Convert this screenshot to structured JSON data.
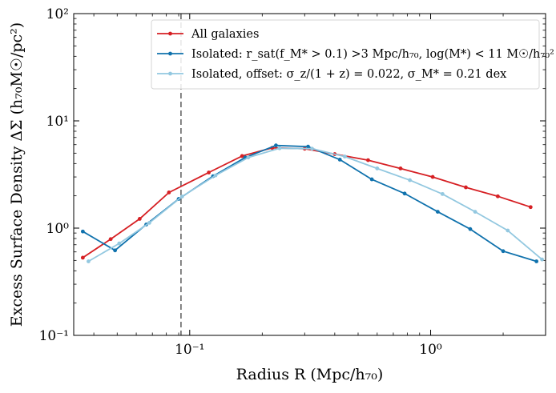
{
  "chart_data": {
    "type": "line",
    "xscale": "log",
    "yscale": "log",
    "xlim": [
      0.033,
      3.0
    ],
    "ylim": [
      0.1,
      100
    ],
    "xlabel": "Radius R (Mpc/h₇₀)",
    "ylabel": "Excess Surface Density ΔΣ (h₇₀M☉/pc²)",
    "x_ticks": [
      {
        "value": 0.1,
        "label": "10⁻¹"
      },
      {
        "value": 1,
        "label": "10⁰"
      }
    ],
    "y_ticks": [
      {
        "value": 0.1,
        "label": "10⁻¹"
      },
      {
        "value": 1,
        "label": "10⁰"
      },
      {
        "value": 10,
        "label": "10¹"
      },
      {
        "value": 100,
        "label": "10²"
      }
    ],
    "vline": {
      "x": 0.092,
      "style": "dashed",
      "color": "#777777"
    },
    "legend_position": "top-right",
    "series": [
      {
        "name": "All galaxies",
        "color": "#d62024",
        "x": [
          0.036,
          0.047,
          0.062,
          0.082,
          0.12,
          0.165,
          0.22,
          0.3,
          0.4,
          0.55,
          0.75,
          1.02,
          1.4,
          1.9,
          2.6
        ],
        "y": [
          0.53,
          0.79,
          1.22,
          2.15,
          3.3,
          4.7,
          5.6,
          5.5,
          4.9,
          4.3,
          3.6,
          3.0,
          2.4,
          1.98,
          1.57
        ]
      },
      {
        "name": "Isolated: r_sat(f_M* > 0.1) >3 Mpc/h₇₀, log(M*) < 11 M☉/h₇₀²",
        "color": "#1072ad",
        "x": [
          0.036,
          0.049,
          0.066,
          0.09,
          0.125,
          0.17,
          0.228,
          0.31,
          0.42,
          0.57,
          0.78,
          1.07,
          1.46,
          2.0,
          2.75
        ],
        "y": [
          0.93,
          0.62,
          1.08,
          1.87,
          3.05,
          4.55,
          5.9,
          5.75,
          4.35,
          2.85,
          2.1,
          1.42,
          0.98,
          0.61,
          0.49
        ]
      },
      {
        "name": "Isolated, offset: σ_z/(1 + z) = 0.022, σ_M* = 0.21 dex",
        "color": "#93c8e0",
        "x": [
          0.038,
          0.051,
          0.068,
          0.093,
          0.128,
          0.175,
          0.236,
          0.322,
          0.44,
          0.6,
          0.82,
          1.12,
          1.53,
          2.09,
          2.9
        ],
        "y": [
          0.49,
          0.72,
          1.12,
          1.97,
          3.1,
          4.55,
          5.55,
          5.5,
          4.65,
          3.6,
          2.8,
          2.08,
          1.42,
          0.95,
          0.51
        ]
      }
    ]
  }
}
